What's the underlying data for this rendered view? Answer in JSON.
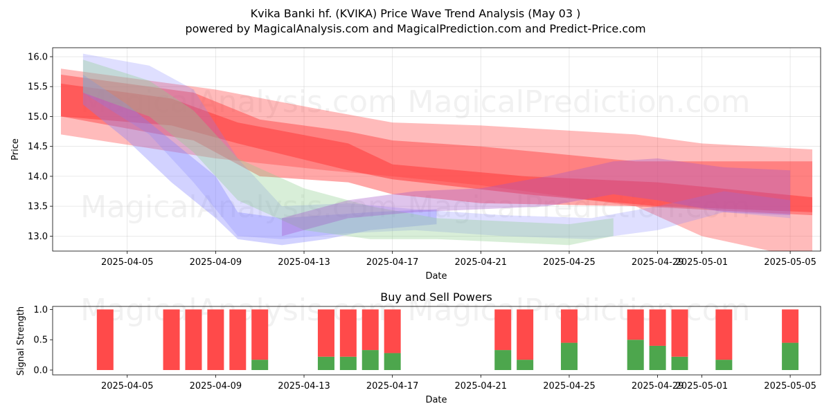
{
  "header": {
    "title": "Kvika Banki hf. (KVIKA) Price Wave Trend Analysis (May 03 )",
    "subtitle": "powered by MagicalAnalysis.com and MagicalPrediction.com and Predict-Price.com"
  },
  "watermarks": [
    "MagicalAnalysis.com",
    "MagicalPrediction.com"
  ],
  "chart_data": [
    {
      "type": "area",
      "xlabel": "Date",
      "ylabel": "Price",
      "x_range": [
        "2025-04-02",
        "2025-05-06"
      ],
      "ylim": [
        12.75,
        16.15
      ],
      "yticks": [
        13.0,
        13.5,
        14.0,
        14.5,
        15.0,
        15.5,
        16.0
      ],
      "xticks": [
        "2025-04-05",
        "2025-04-09",
        "2025-04-13",
        "2025-04-17",
        "2025-04-21",
        "2025-04-25",
        "2025-04-29",
        "2025-05-01",
        "2025-05-05"
      ],
      "grid": true,
      "colors": {
        "red": "#ff3b3b",
        "blue": "#7f7fff",
        "green": "#8fcf8f",
        "purple": "#a455c8"
      },
      "series": [
        {
          "color": "red",
          "opacity": 0.35,
          "x": [
            "2025-04-02",
            "2025-04-09",
            "2025-04-14",
            "2025-04-17",
            "2025-04-21",
            "2025-04-28",
            "2025-05-01",
            "2025-05-06"
          ],
          "upper": [
            15.8,
            15.45,
            15.1,
            14.9,
            14.85,
            14.7,
            14.55,
            14.45
          ],
          "lower": [
            14.7,
            14.3,
            14.1,
            14.0,
            13.85,
            13.5,
            13.0,
            12.6
          ]
        },
        {
          "color": "red",
          "opacity": 0.45,
          "x": [
            "2025-04-02",
            "2025-04-08",
            "2025-04-11",
            "2025-04-15",
            "2025-04-17",
            "2025-04-21",
            "2025-04-28",
            "2025-05-06"
          ],
          "upper": [
            15.7,
            15.4,
            14.95,
            14.75,
            14.6,
            14.5,
            14.25,
            14.25
          ],
          "lower": [
            15.0,
            14.6,
            14.0,
            13.9,
            13.7,
            13.55,
            13.5,
            13.35
          ]
        },
        {
          "color": "red",
          "opacity": 0.55,
          "x": [
            "2025-04-02",
            "2025-04-07",
            "2025-04-10",
            "2025-04-15",
            "2025-04-17",
            "2025-04-23",
            "2025-04-29",
            "2025-05-06"
          ],
          "upper": [
            15.55,
            15.3,
            14.9,
            14.55,
            14.2,
            14.0,
            13.9,
            13.65
          ],
          "lower": [
            15.0,
            14.85,
            14.55,
            14.1,
            13.95,
            13.7,
            13.5,
            13.4
          ]
        },
        {
          "color": "blue",
          "opacity": 0.25,
          "x": [
            "2025-04-03",
            "2025-04-06",
            "2025-04-08",
            "2025-04-10",
            "2025-04-12",
            "2025-04-15",
            "2025-04-18",
            "2025-04-22",
            "2025-04-26",
            "2025-04-29",
            "2025-05-02",
            "2025-05-05"
          ],
          "upper": [
            16.05,
            15.85,
            15.45,
            14.3,
            13.5,
            13.55,
            13.45,
            13.35,
            13.3,
            13.5,
            13.75,
            13.6
          ],
          "lower": [
            15.4,
            14.7,
            13.9,
            13.0,
            12.95,
            13.05,
            13.1,
            13.0,
            12.95,
            13.1,
            13.4,
            13.3
          ]
        },
        {
          "color": "blue",
          "opacity": 0.35,
          "x": [
            "2025-04-03",
            "2025-04-05",
            "2025-04-07",
            "2025-04-09",
            "2025-04-10",
            "2025-04-12",
            "2025-04-14",
            "2025-04-16",
            "2025-04-19"
          ],
          "upper": [
            15.7,
            15.2,
            14.6,
            14.0,
            13.4,
            13.3,
            13.35,
            13.4,
            13.45
          ],
          "lower": [
            15.2,
            14.6,
            13.9,
            13.3,
            12.95,
            12.85,
            12.95,
            13.1,
            13.2
          ]
        },
        {
          "color": "green",
          "opacity": 0.35,
          "x": [
            "2025-04-03",
            "2025-04-06",
            "2025-04-08",
            "2025-04-10",
            "2025-04-13",
            "2025-04-16",
            "2025-04-19",
            "2025-04-22",
            "2025-04-25",
            "2025-04-27"
          ],
          "upper": [
            15.95,
            15.6,
            15.1,
            14.3,
            13.8,
            13.5,
            13.3,
            13.25,
            13.2,
            13.3
          ],
          "lower": [
            15.4,
            15.0,
            14.4,
            13.6,
            13.1,
            12.95,
            12.95,
            12.9,
            12.85,
            13.0
          ]
        },
        {
          "color": "purple",
          "opacity": 0.35,
          "x": [
            "2025-04-12",
            "2025-04-15",
            "2025-04-18",
            "2025-04-21",
            "2025-04-24",
            "2025-04-27",
            "2025-04-29",
            "2025-05-02",
            "2025-05-05"
          ],
          "upper": [
            13.3,
            13.6,
            13.75,
            13.8,
            14.0,
            14.25,
            14.3,
            14.15,
            14.1
          ],
          "lower": [
            13.0,
            13.3,
            13.4,
            13.45,
            13.5,
            13.7,
            13.6,
            13.4,
            13.35
          ]
        }
      ]
    },
    {
      "type": "bar",
      "title": "Buy and Sell Powers",
      "xlabel": "Date",
      "ylabel": "Signal Strength",
      "ylim": [
        0,
        1.05
      ],
      "yticks": [
        0.0,
        0.5,
        1.0
      ],
      "xticks": [
        "2025-04-05",
        "2025-04-09",
        "2025-04-13",
        "2025-04-17",
        "2025-04-21",
        "2025-04-25",
        "2025-04-29",
        "2025-05-01",
        "2025-05-05"
      ],
      "x_range": [
        "2025-04-02",
        "2025-05-06"
      ],
      "colors": {
        "buy": "#4da64d",
        "sell": "#ff4a4a"
      },
      "dates": [
        "2025-04-04",
        "2025-04-07",
        "2025-04-08",
        "2025-04-09",
        "2025-04-10",
        "2025-04-11",
        "2025-04-14",
        "2025-04-15",
        "2025-04-16",
        "2025-04-17",
        "2025-04-22",
        "2025-04-23",
        "2025-04-25",
        "2025-04-28",
        "2025-04-29",
        "2025-04-30",
        "2025-05-02",
        "2025-05-05"
      ],
      "buy": [
        0.0,
        0.0,
        0.0,
        0.0,
        0.0,
        0.17,
        0.22,
        0.22,
        0.33,
        0.28,
        0.33,
        0.17,
        0.45,
        0.5,
        0.4,
        0.22,
        0.17,
        0.45
      ],
      "sell": [
        1.0,
        1.0,
        1.0,
        1.0,
        1.0,
        0.83,
        0.78,
        0.78,
        0.67,
        0.72,
        0.67,
        0.83,
        0.55,
        0.5,
        0.6,
        0.78,
        0.83,
        0.55
      ]
    }
  ]
}
